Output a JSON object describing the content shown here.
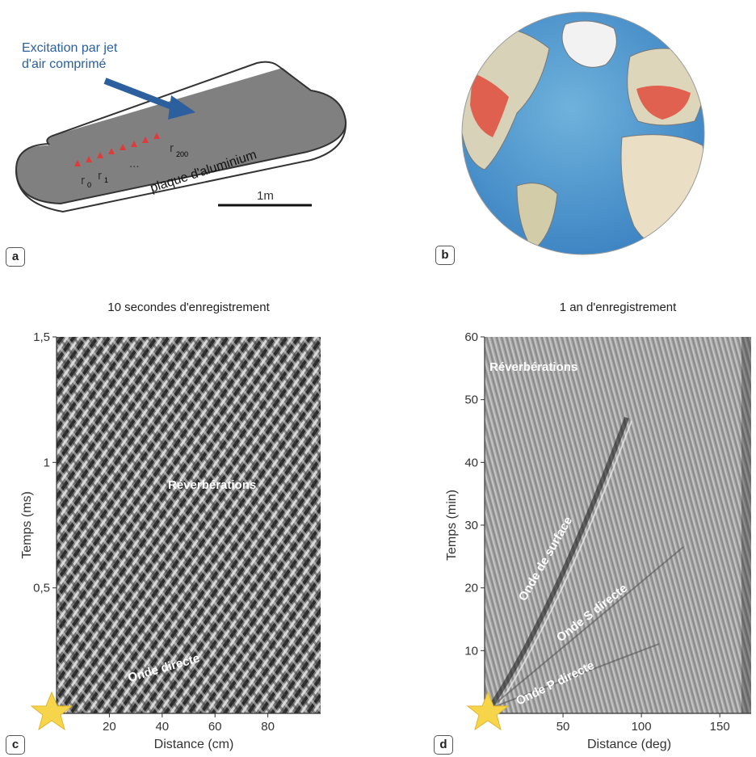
{
  "panel_a": {
    "badge": "a",
    "excitation": "Excitation par jet",
    "excitation2": "d'air comprimé",
    "r0": "r",
    "r0_sub": "0",
    "r1": "r",
    "r1_sub": "1",
    "dots": "...",
    "r200": "r",
    "r200_sub": "200",
    "plate": "plaque d'aluminium",
    "scale": "1m"
  },
  "panel_b": {
    "badge": "b"
  },
  "chart_data": [
    {
      "type": "heatmap",
      "badge": "c",
      "title": "10 secondes d'enregistrement",
      "xlabel": "Distance (cm)",
      "ylabel": "Temps (ms)",
      "xlim": [
        0,
        100
      ],
      "ylim": [
        0,
        1.5
      ],
      "xticks": [
        "20",
        "40",
        "60",
        "80"
      ],
      "yticks": [
        "0,5",
        "1",
        "1,5"
      ],
      "annotations": [
        "Réverbérations",
        "Onde directe"
      ]
    },
    {
      "type": "heatmap",
      "badge": "d",
      "title": "1 an d'enregistrement",
      "xlabel": "Distance (deg)",
      "ylabel": "Temps (min)",
      "xlim": [
        0,
        170
      ],
      "ylim": [
        0,
        60
      ],
      "xticks": [
        "50",
        "100",
        "150"
      ],
      "yticks": [
        "10",
        "20",
        "30",
        "40",
        "50",
        "60"
      ],
      "annotations": [
        "Réverbérations",
        "Onde de surface",
        "Onde S directe",
        "Onde P directe"
      ]
    }
  ]
}
